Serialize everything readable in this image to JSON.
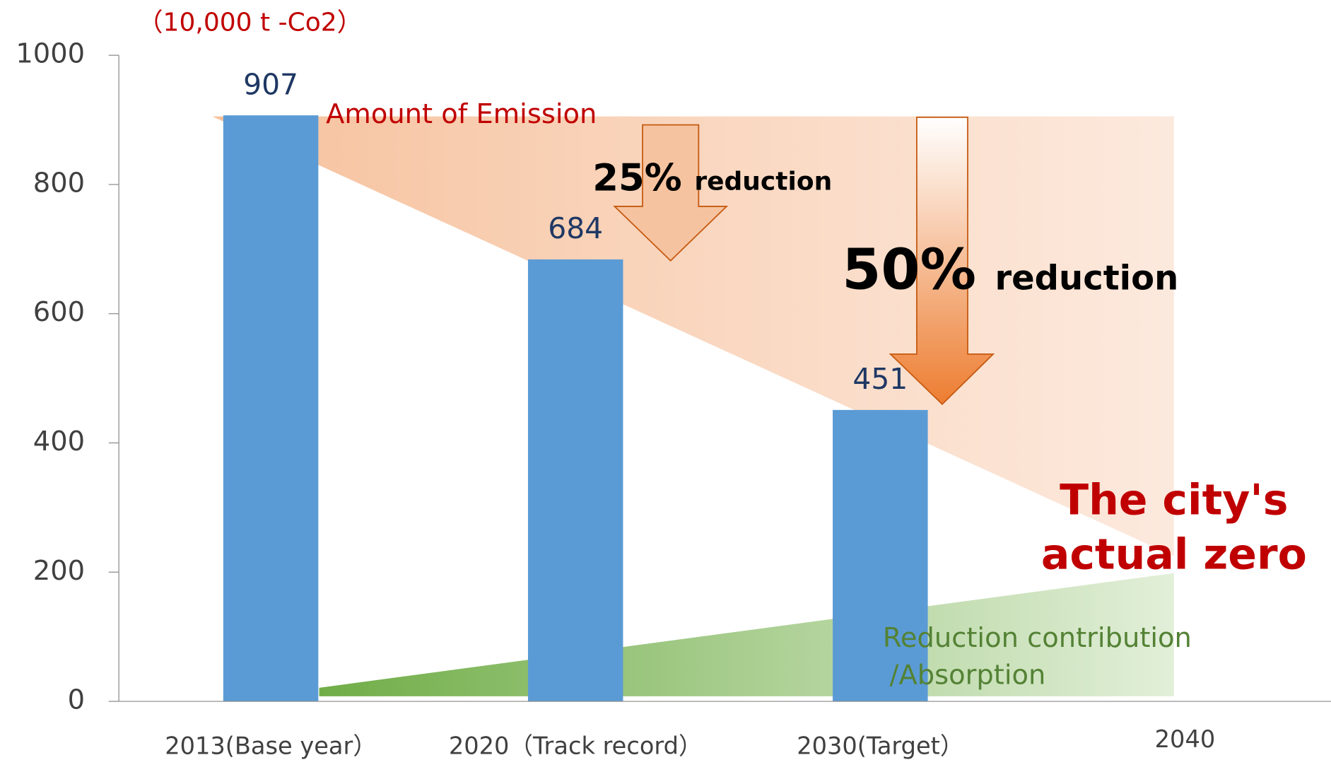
{
  "chart_data": {
    "type": "bar",
    "unit_label": "（10,000 t -Co2）",
    "categories": [
      "2013(Base year）",
      "2020（Track record）",
      "2030(Target）",
      "2040"
    ],
    "values": [
      907,
      684,
      451,
      null
    ],
    "color": "#5b9bd5",
    "ylim": [
      0,
      1000
    ],
    "yticks": [
      0,
      200,
      400,
      600,
      800,
      1000
    ],
    "annotations": {
      "emission": "Amount of Emission",
      "r25_pct": "25%",
      "r25_word": "reduction",
      "r50_pct": "50%",
      "r50_word": "reduction",
      "zero_1": "The city's",
      "zero_2": "actual zero",
      "absorb_1": "Reduction contribution",
      "absorb_2": "/Absorption"
    }
  }
}
